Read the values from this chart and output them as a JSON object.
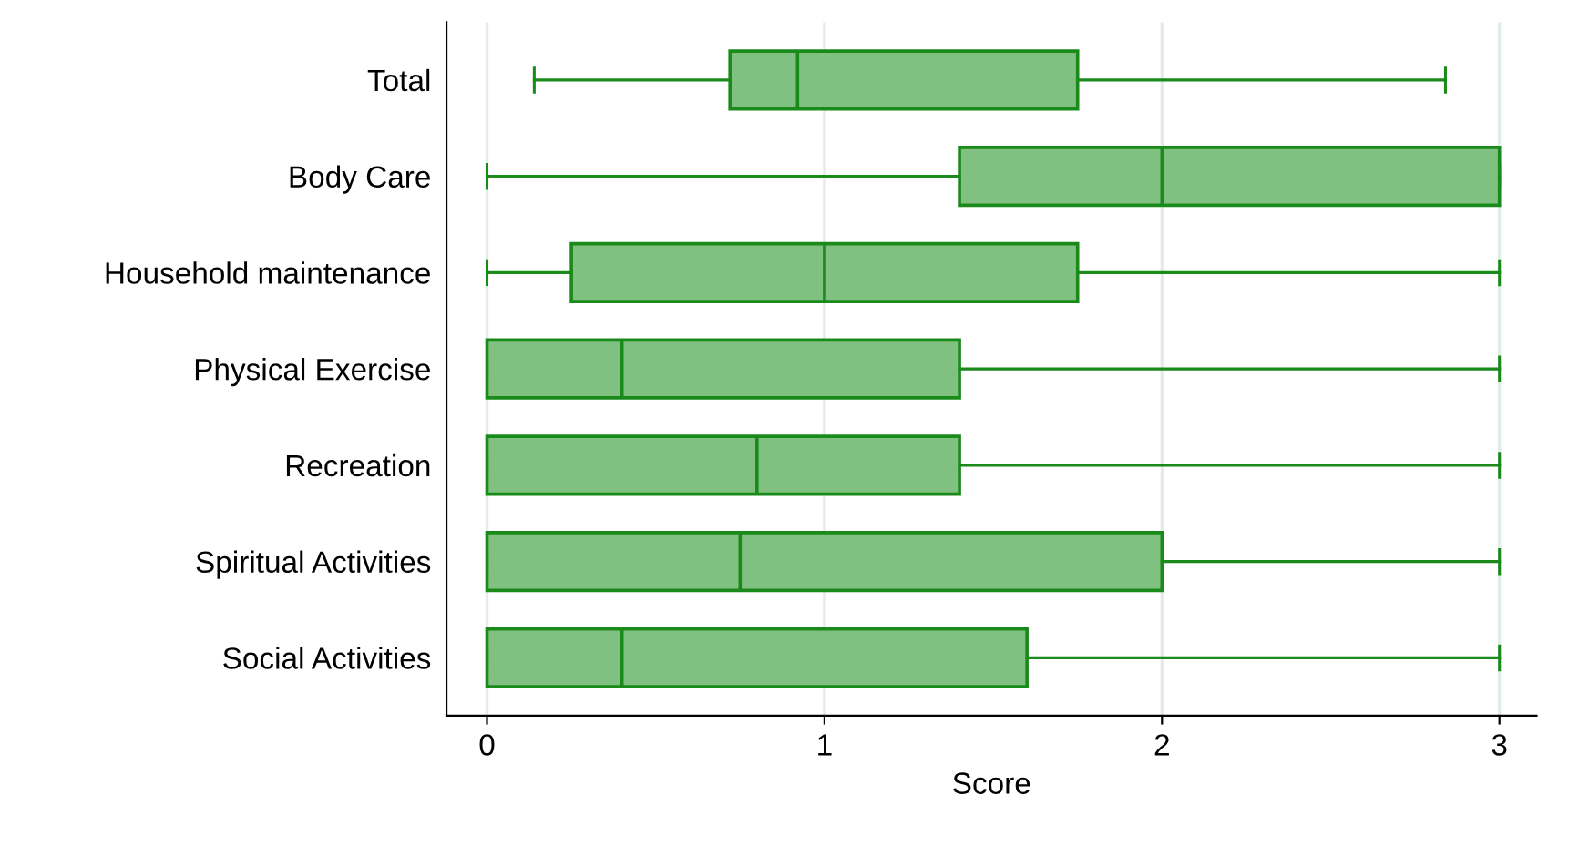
{
  "chart_data": {
    "type": "box",
    "orientation": "horizontal",
    "xlabel": "Score",
    "categories": [
      "Total",
      "Body Care",
      "Household maintenance",
      "Physical Exercise",
      "Recreation",
      "Spiritual Activities",
      "Social Activities"
    ],
    "boxes": [
      {
        "low": 0.14,
        "q1": 0.72,
        "median": 0.92,
        "q3": 1.75,
        "high": 2.84
      },
      {
        "low": 0,
        "q1": 1.4,
        "median": 2,
        "q3": 3,
        "high": 3
      },
      {
        "low": 0,
        "q1": 0.25,
        "median": 1,
        "q3": 1.75,
        "high": 3
      },
      {
        "low": 0,
        "q1": 0,
        "median": 0.4,
        "q3": 1.4,
        "high": 3
      },
      {
        "low": 0,
        "q1": 0,
        "median": 0.8,
        "q3": 1.4,
        "high": 3
      },
      {
        "low": 0,
        "q1": 0,
        "median": 0.75,
        "q3": 2,
        "high": 3
      },
      {
        "low": 0,
        "q1": 0,
        "median": 0.4,
        "q3": 1.6,
        "high": 3
      }
    ],
    "color": "#80c080",
    "xlim": [
      -0.12,
      3.11
    ],
    "xticks": [
      0,
      1,
      2,
      3
    ],
    "grid": "x"
  }
}
